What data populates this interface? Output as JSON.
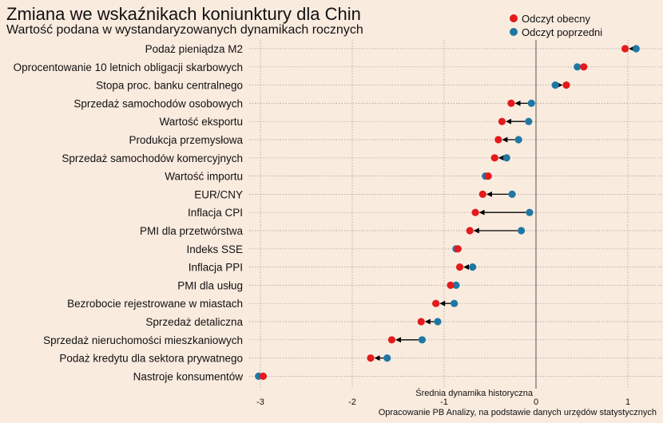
{
  "chart_data": {
    "type": "dumbbell",
    "title": "Zmiana we wskaźnikach koniunktury dla Chin",
    "subtitle": "Wartość podana w wystandaryzowanych dynamikach rocznych",
    "xlabel": "Średnia dynamika historyczna",
    "caption": "Opracowanie  PB Analizy, na podstawie danych urzędów statystycznych",
    "xlim": [
      -3.2,
      1.3
    ],
    "xticks": [
      -3,
      -2,
      -1,
      0,
      1
    ],
    "xtick_labels": [
      "-3",
      "-2",
      "-1",
      "0",
      "1"
    ],
    "legend_position": "top-right",
    "series": [
      {
        "name": "Odczyt obecny",
        "color": "#E41A1C"
      },
      {
        "name": "Odczyt poprzedni",
        "color": "#1F78A4"
      }
    ],
    "categories": [
      "Podaż pieniądza M2",
      "Oprocentowanie 10 letnich obligacji skarbowych",
      "Stopa proc. banku centralnego",
      "Sprzedaż samochodów osobowych",
      "Wartość eksportu",
      "Produkcja przemysłowa",
      "Sprzedaż samochodów komercyjnych",
      "Wartość importu",
      "EUR/CNY",
      "Inflacja CPI",
      "PMI dla przetwórstwa",
      "Indeks SSE",
      "Inflacja PPI",
      "PMI dla usług",
      "Bezrobocie rejestrowane w miastach",
      "Sprzedaż detaliczna",
      "Sprzedaż nieruchomości mieszkaniowych",
      "Podaż kredytu dla sektora prywatnego",
      "Nastroje konsumentów"
    ],
    "current": [
      0.97,
      0.52,
      0.33,
      -0.27,
      -0.37,
      -0.41,
      -0.45,
      -0.52,
      -0.58,
      -0.66,
      -0.72,
      -0.85,
      -0.83,
      -0.93,
      -1.09,
      -1.25,
      -1.57,
      -1.8,
      -2.97
    ],
    "previous": [
      1.09,
      0.45,
      0.21,
      -0.05,
      -0.08,
      -0.19,
      -0.32,
      -0.55,
      -0.26,
      -0.07,
      -0.16,
      -0.87,
      -0.69,
      -0.87,
      -0.89,
      -1.07,
      -1.24,
      -1.62,
      -3.02
    ],
    "arrow": [
      true,
      false,
      true,
      true,
      true,
      true,
      true,
      false,
      true,
      true,
      true,
      false,
      true,
      false,
      true,
      true,
      true,
      true,
      false
    ]
  }
}
